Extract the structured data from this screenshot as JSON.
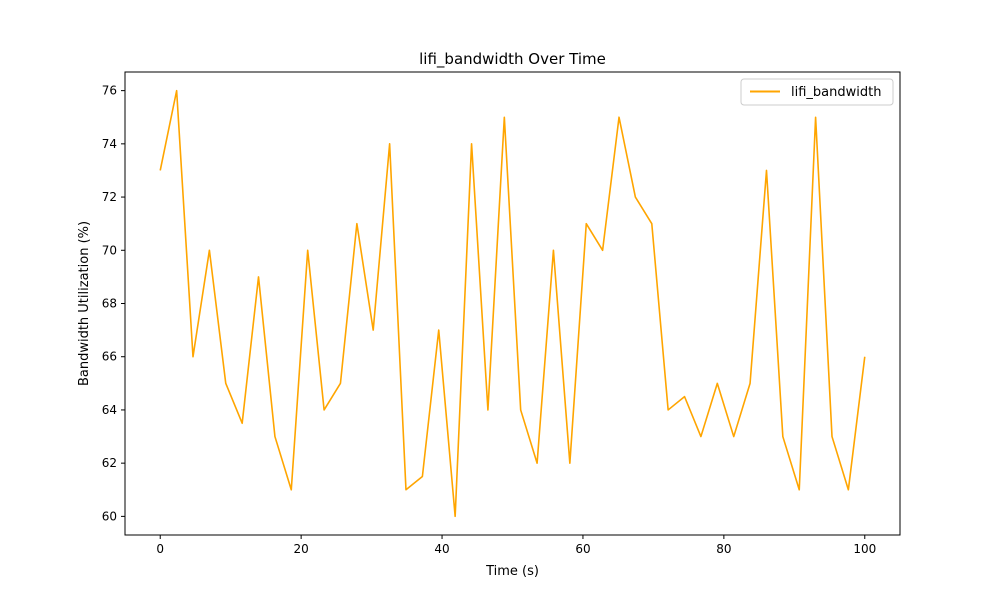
{
  "chart_data": {
    "type": "line",
    "title": "lifi_bandwidth Over Time",
    "xlabel": "Time (s)",
    "ylabel": "Bandwidth Utilization (%)",
    "xlim": [
      -5,
      105
    ],
    "ylim": [
      59.3,
      76.7
    ],
    "x_ticks": [
      0,
      20,
      40,
      60,
      80,
      100
    ],
    "y_ticks": [
      60,
      62,
      64,
      66,
      68,
      70,
      72,
      74,
      76
    ],
    "grid": false,
    "legend": {
      "position": "top-right",
      "entries": [
        "lifi_bandwidth"
      ]
    },
    "series": [
      {
        "name": "lifi_bandwidth",
        "color": "#ffa500",
        "x": [
          0,
          2.33,
          4.65,
          6.98,
          9.3,
          11.63,
          13.95,
          16.28,
          18.6,
          20.93,
          23.26,
          25.58,
          27.91,
          30.23,
          32.56,
          34.88,
          37.21,
          39.53,
          41.86,
          44.19,
          46.51,
          48.84,
          51.16,
          53.49,
          55.81,
          58.14,
          60.47,
          62.79,
          65.12,
          67.44,
          69.77,
          72.09,
          74.42,
          76.74,
          79.07,
          81.4,
          83.72,
          86.05,
          88.37,
          90.7,
          93.02,
          95.35,
          97.67,
          100
        ],
        "values": [
          73,
          76,
          66,
          70,
          65,
          63.5,
          69,
          63,
          61,
          70,
          64,
          65,
          71,
          67,
          74,
          61,
          61.5,
          67,
          60,
          74,
          64,
          75,
          64,
          62,
          70,
          62,
          71,
          70,
          75,
          72,
          71,
          64,
          64.5,
          63,
          65,
          63,
          65,
          73,
          63,
          61,
          75,
          63,
          61,
          66
        ]
      }
    ]
  }
}
